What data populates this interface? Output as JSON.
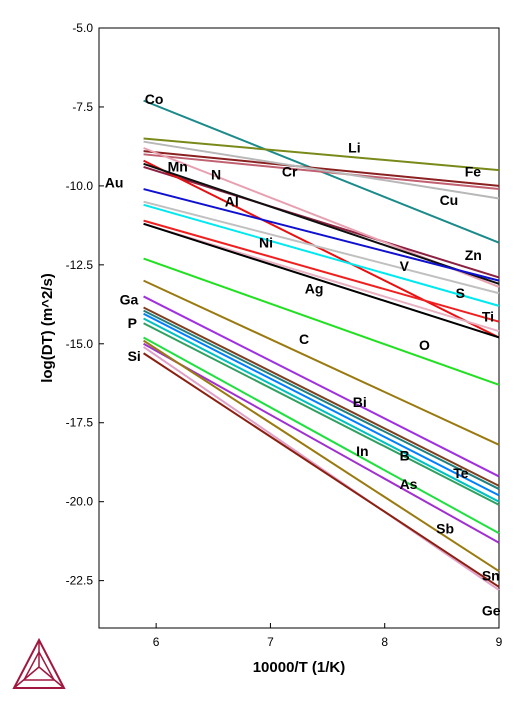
{
  "chart_data": {
    "type": "line",
    "title": "",
    "xlabel": "10000/T (1/K)",
    "ylabel": "log(DT) (m^2/s)",
    "xlim": [
      5.5,
      9.0
    ],
    "ylim": [
      -24.0,
      -5.0
    ],
    "x_ticks": [
      "6",
      "7",
      "8",
      "9"
    ],
    "y_ticks": [
      "-5.0",
      "-7.5",
      "-10.0",
      "-12.5",
      "-15.0",
      "-17.5",
      "-20.0",
      "-22.5"
    ],
    "x_tick_values": [
      6,
      7,
      8,
      9
    ],
    "y_tick_values": [
      -5.0,
      -7.5,
      -10.0,
      -12.5,
      -15.0,
      -17.5,
      -20.0,
      -22.5
    ],
    "grid": false,
    "logo_icon": "thermo-calc-triangle-logo",
    "series": [
      {
        "name": "Co",
        "color": "#1a8a8a",
        "x": [
          5.89,
          9.0
        ],
        "y": [
          -7.3,
          -11.8
        ]
      },
      {
        "name": "Li",
        "color": "#7a8a1a",
        "x": [
          5.89,
          9.0
        ],
        "y": [
          -8.5,
          -9.5
        ]
      },
      {
        "name": "Fe",
        "color": "#8b2020",
        "x": [
          5.89,
          9.0
        ],
        "y": [
          -8.9,
          -10.0
        ]
      },
      {
        "name": "Cr",
        "color": "#c06070",
        "x": [
          5.89,
          9.0
        ],
        "y": [
          -9.0,
          -10.1
        ]
      },
      {
        "name": "Cu",
        "color": "#b8b8b8",
        "x": [
          5.89,
          9.0
        ],
        "y": [
          -8.6,
          -10.4
        ]
      },
      {
        "name": "Mn",
        "color": "#8b2040",
        "x": [
          5.89,
          9.0
        ],
        "y": [
          -9.4,
          -12.9
        ]
      },
      {
        "name": "Zn",
        "color": "#e8a0b0",
        "x": [
          5.89,
          9.0
        ],
        "y": [
          -8.8,
          -13.2
        ]
      },
      {
        "name": "N",
        "color": "#e81010",
        "x": [
          5.89,
          9.0
        ],
        "y": [
          -9.2,
          -14.8
        ]
      },
      {
        "name": "V",
        "color": "#101010",
        "x": [
          5.89,
          9.0
        ],
        "y": [
          -9.3,
          -13.1
        ]
      },
      {
        "name": "Au",
        "color": "#1010d0",
        "x": [
          5.89,
          9.0
        ],
        "y": [
          -10.1,
          -13.0
        ]
      },
      {
        "name": "Al",
        "color": "#c0c0c0",
        "x": [
          5.89,
          9.0
        ],
        "y": [
          -10.5,
          -13.4
        ]
      },
      {
        "name": "S",
        "color": "#00e8f0",
        "x": [
          5.89,
          9.0
        ],
        "y": [
          -10.6,
          -13.8
        ]
      },
      {
        "name": "Ni",
        "color": "#f02020",
        "x": [
          5.89,
          9.0
        ],
        "y": [
          -11.1,
          -14.3
        ]
      },
      {
        "name": "Ti",
        "color": "#e8b0c0",
        "x": [
          5.89,
          9.0
        ],
        "y": [
          -11.2,
          -14.6
        ]
      },
      {
        "name": "Ag",
        "color": "#000000",
        "x": [
          5.89,
          9.0
        ],
        "y": [
          -11.2,
          -14.8
        ]
      },
      {
        "name": "O",
        "color": "#20e020",
        "x": [
          5.89,
          9.0
        ],
        "y": [
          -12.3,
          -16.3
        ]
      },
      {
        "name": "C",
        "color": "#9a7a10",
        "x": [
          5.89,
          9.0
        ],
        "y": [
          -13.0,
          -18.2
        ]
      },
      {
        "name": "Bi",
        "color": "#a030e0",
        "x": [
          5.89,
          9.0
        ],
        "y": [
          -13.5,
          -19.2
        ]
      },
      {
        "name": "Ga",
        "color": "#804020",
        "x": [
          5.89,
          9.0
        ],
        "y": [
          -13.85,
          -19.5
        ]
      },
      {
        "name": "Te",
        "color": "#208080",
        "x": [
          5.89,
          9.0
        ],
        "y": [
          -13.95,
          -19.6
        ]
      },
      {
        "name": "B",
        "color": "#0080ff",
        "x": [
          5.89,
          9.0
        ],
        "y": [
          -14.05,
          -19.8
        ]
      },
      {
        "name": "P",
        "color": "#00c0c0",
        "x": [
          5.89,
          9.0
        ],
        "y": [
          -14.2,
          -20.0
        ]
      },
      {
        "name": "In",
        "color": "#30a060",
        "x": [
          5.89,
          9.0
        ],
        "y": [
          -14.35,
          -20.1
        ]
      },
      {
        "name": "As",
        "color": "#20e040",
        "x": [
          5.89,
          9.0
        ],
        "y": [
          -14.8,
          -21.0
        ]
      },
      {
        "name": "Sb",
        "color": "#a030d0",
        "x": [
          5.89,
          9.0
        ],
        "y": [
          -15.0,
          -21.3
        ]
      },
      {
        "name": "Sn",
        "color": "#9a7a10",
        "x": [
          5.89,
          9.0
        ],
        "y": [
          -14.9,
          -22.2
        ]
      },
      {
        "name": "Ge",
        "color": "#e0a0c8",
        "x": [
          5.89,
          9.0
        ],
        "y": [
          -15.1,
          -22.8
        ]
      },
      {
        "name": "Si",
        "color": "#8b2010",
        "x": [
          5.89,
          9.0
        ],
        "y": [
          -15.3,
          -22.7
        ]
      }
    ],
    "labels": [
      {
        "text": "Co",
        "x": 5.9,
        "y": -7.4
      },
      {
        "text": "Li",
        "x": 7.68,
        "y": -8.95
      },
      {
        "text": "Mn",
        "x": 6.1,
        "y": -9.55
      },
      {
        "text": "Cr",
        "x": 7.1,
        "y": -9.7
      },
      {
        "text": "Fe",
        "x": 8.7,
        "y": -9.7
      },
      {
        "text": "Au",
        "x": 5.55,
        "y": -10.05
      },
      {
        "text": "N",
        "x": 6.48,
        "y": -9.8
      },
      {
        "text": "Al",
        "x": 6.6,
        "y": -10.65
      },
      {
        "text": "Cu",
        "x": 8.48,
        "y": -10.6
      },
      {
        "text": "Ni",
        "x": 6.9,
        "y": -11.95
      },
      {
        "text": "Zn",
        "x": 8.7,
        "y": -12.35
      },
      {
        "text": "V",
        "x": 8.13,
        "y": -12.7
      },
      {
        "text": "Ag",
        "x": 7.3,
        "y": -13.4
      },
      {
        "text": "S",
        "x": 8.62,
        "y": -13.55
      },
      {
        "text": "Ti",
        "x": 8.85,
        "y": -14.3
      },
      {
        "text": "Ga",
        "x": 5.68,
        "y": -13.75
      },
      {
        "text": "P",
        "x": 5.75,
        "y": -14.5
      },
      {
        "text": "C",
        "x": 7.25,
        "y": -15.0
      },
      {
        "text": "O",
        "x": 8.3,
        "y": -15.2
      },
      {
        "text": "Si",
        "x": 5.75,
        "y": -15.55
      },
      {
        "text": "Bi",
        "x": 7.72,
        "y": -17.0
      },
      {
        "text": "In",
        "x": 7.75,
        "y": -18.55
      },
      {
        "text": "B",
        "x": 8.13,
        "y": -18.7
      },
      {
        "text": "Te",
        "x": 8.6,
        "y": -19.25
      },
      {
        "text": "As",
        "x": 8.13,
        "y": -19.6
      },
      {
        "text": "Sb",
        "x": 8.45,
        "y": -21.0
      },
      {
        "text": "Sn",
        "x": 8.85,
        "y": -22.5
      },
      {
        "text": "Ge",
        "x": 8.85,
        "y": -23.6
      }
    ]
  }
}
